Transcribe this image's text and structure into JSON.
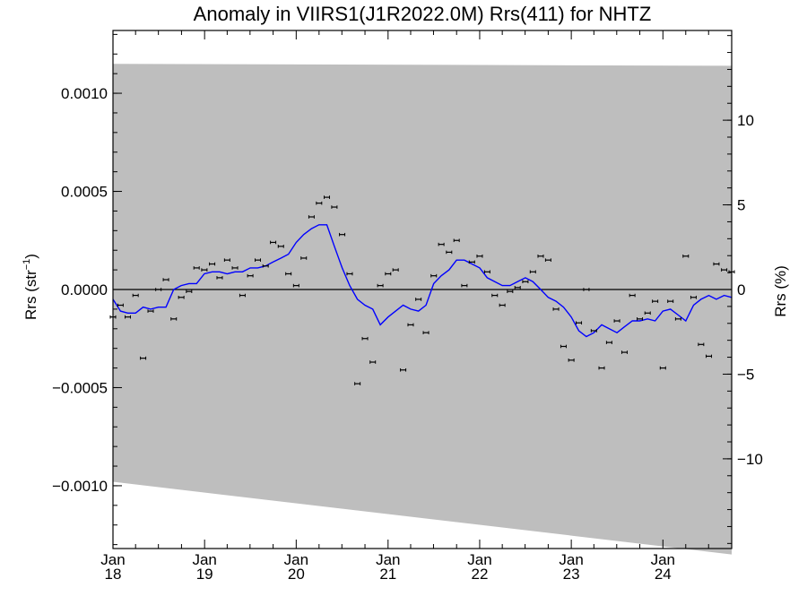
{
  "chart_data": {
    "type": "scatter",
    "title": "Anomaly in VIIRS1(J1R2022.0M) Rrs(411) for NHTZ",
    "ylabel": "Rrs (str",
    "ylabel_sup": "−1",
    "ylabel_close": ")",
    "y2label": "Rrs (%)",
    "xlim": [
      "2018-01-01",
      "2024-10-01"
    ],
    "ylim": [
      -0.00132,
      0.00132
    ],
    "y2lim": [
      -15.3,
      15.3
    ],
    "x_ticks": [
      {
        "date": "2018-01-01",
        "month": "Jan",
        "year": "18"
      },
      {
        "date": "2019-01-01",
        "month": "Jan",
        "year": "19"
      },
      {
        "date": "2020-01-01",
        "month": "Jan",
        "year": "20"
      },
      {
        "date": "2021-01-01",
        "month": "Jan",
        "year": "21"
      },
      {
        "date": "2022-01-01",
        "month": "Jan",
        "year": "22"
      },
      {
        "date": "2023-01-01",
        "month": "Jan",
        "year": "23"
      },
      {
        "date": "2024-01-01",
        "month": "Jan",
        "year": "24"
      }
    ],
    "y_ticks": [
      {
        "value": 0.001,
        "label": "0.0010"
      },
      {
        "value": 0.0005,
        "label": "0.0005"
      },
      {
        "value": 0.0,
        "label": "0.0000"
      },
      {
        "value": -0.0005,
        "label": "−0.0005"
      },
      {
        "value": -0.001,
        "label": "−0.0010"
      }
    ],
    "y2_ticks": [
      {
        "value": 10,
        "label": "10"
      },
      {
        "value": 5,
        "label": "5"
      },
      {
        "value": 0,
        "label": "0"
      },
      {
        "value": -5,
        "label": "−5"
      },
      {
        "value": -10,
        "label": "−10"
      }
    ],
    "zero_line": true,
    "colors": {
      "band": "#bebebe",
      "line": "#0000ff",
      "points": "#000000",
      "axes": "#000000"
    },
    "band": {
      "x": [
        "2018-01-01",
        "2024-10-01"
      ],
      "upper": [
        0.00115,
        0.00114
      ],
      "lower": [
        -0.00098,
        -0.00135
      ]
    },
    "series": [
      {
        "kind": "points",
        "x": [
          "2018-01-01",
          "2018-01-31",
          "2018-03-01",
          "2018-04-01",
          "2018-05-01",
          "2018-05-31",
          "2018-07-01",
          "2018-07-31",
          "2018-08-31",
          "2018-09-30",
          "2018-10-31",
          "2018-11-30",
          "2018-12-31",
          "2019-01-31",
          "2019-03-02",
          "2019-04-01",
          "2019-05-02",
          "2019-06-01",
          "2019-07-02",
          "2019-08-01",
          "2019-09-01",
          "2019-10-01",
          "2019-11-01",
          "2019-12-01",
          "2020-01-01",
          "2020-01-31",
          "2020-03-02",
          "2020-04-01",
          "2020-05-02",
          "2020-06-01",
          "2020-07-02",
          "2020-08-01",
          "2020-09-01",
          "2020-10-01",
          "2020-11-01",
          "2020-12-01",
          "2021-01-01",
          "2021-01-31",
          "2021-03-02",
          "2021-04-01",
          "2021-05-02",
          "2021-06-01",
          "2021-07-02",
          "2021-08-01",
          "2021-09-01",
          "2021-10-01",
          "2021-11-01",
          "2021-12-01",
          "2022-01-01",
          "2022-01-31",
          "2022-03-02",
          "2022-04-01",
          "2022-05-02",
          "2022-06-01",
          "2022-07-02",
          "2022-08-01",
          "2022-09-01",
          "2022-10-01",
          "2022-11-01",
          "2022-12-01",
          "2023-01-01",
          "2023-01-31",
          "2023-03-02",
          "2023-04-01",
          "2023-05-02",
          "2023-06-01",
          "2023-07-02",
          "2023-08-01",
          "2023-09-01",
          "2023-10-01",
          "2023-11-01",
          "2023-12-01",
          "2024-01-01",
          "2024-01-31",
          "2024-03-02",
          "2024-04-01",
          "2024-05-02",
          "2024-06-01",
          "2024-07-02",
          "2024-08-01",
          "2024-09-01",
          "2024-10-01"
        ],
        "y": [
          -0.00014,
          -8e-05,
          -0.00014,
          -3e-05,
          -0.00035,
          -0.00011,
          0.0,
          5e-05,
          -0.00015,
          -4e-05,
          -1e-05,
          0.00011,
          0.0001,
          0.00013,
          6e-05,
          0.00015,
          0.00011,
          -3e-05,
          7e-05,
          0.00015,
          0.00012,
          0.00024,
          0.00022,
          8e-05,
          2e-05,
          0.00016,
          0.00037,
          0.00044,
          0.00047,
          0.00042,
          0.00028,
          8e-05,
          -0.00048,
          -0.00025,
          -0.00037,
          2e-05,
          8e-05,
          0.0001,
          -0.00041,
          -0.00018,
          -5e-05,
          -0.00022,
          7e-05,
          0.00023,
          0.00019,
          0.00025,
          2e-05,
          0.00014,
          0.00017,
          9e-05,
          -3e-05,
          -8e-05,
          -1e-05,
          1e-05,
          4e-05,
          9e-05,
          0.00017,
          0.00015,
          -0.0001,
          -0.00029,
          -0.00036,
          -0.00017,
          0.0,
          -0.00021,
          -0.0004,
          -0.00027,
          -0.00016,
          -0.00032,
          -3e-05,
          -0.00015,
          -0.00012,
          -6e-05,
          -0.0004,
          -6e-05,
          -0.00015,
          0.00017,
          -4e-05,
          -0.00028,
          -0.00034,
          0.00013,
          0.0001,
          9e-05
        ]
      },
      {
        "kind": "line",
        "x": [
          "2018-01-01",
          "2018-01-31",
          "2018-03-01",
          "2018-04-01",
          "2018-05-01",
          "2018-05-31",
          "2018-07-01",
          "2018-07-31",
          "2018-08-31",
          "2018-09-30",
          "2018-10-31",
          "2018-11-30",
          "2018-12-31",
          "2019-01-31",
          "2019-03-02",
          "2019-04-01",
          "2019-05-02",
          "2019-06-01",
          "2019-07-02",
          "2019-08-01",
          "2019-09-01",
          "2019-10-01",
          "2019-11-01",
          "2019-12-01",
          "2020-01-01",
          "2020-01-31",
          "2020-03-02",
          "2020-04-01",
          "2020-05-02",
          "2020-06-01",
          "2020-07-02",
          "2020-08-01",
          "2020-09-01",
          "2020-10-01",
          "2020-11-01",
          "2020-12-01",
          "2021-01-01",
          "2021-01-31",
          "2021-03-02",
          "2021-04-01",
          "2021-05-02",
          "2021-06-01",
          "2021-07-02",
          "2021-08-01",
          "2021-09-01",
          "2021-10-01",
          "2021-11-01",
          "2021-12-01",
          "2022-01-01",
          "2022-01-31",
          "2022-03-02",
          "2022-04-01",
          "2022-05-02",
          "2022-06-01",
          "2022-07-02",
          "2022-08-01",
          "2022-09-01",
          "2022-10-01",
          "2022-11-01",
          "2022-12-01",
          "2023-01-01",
          "2023-01-31",
          "2023-03-02",
          "2023-04-01",
          "2023-05-02",
          "2023-06-01",
          "2023-07-02",
          "2023-08-01",
          "2023-09-01",
          "2023-10-01",
          "2023-11-01",
          "2023-12-01",
          "2024-01-01",
          "2024-01-31",
          "2024-03-02",
          "2024-04-01",
          "2024-05-02",
          "2024-06-01",
          "2024-07-02",
          "2024-08-01",
          "2024-09-01",
          "2024-10-01"
        ],
        "y": [
          -5e-05,
          -0.00011,
          -0.00012,
          -0.00012,
          -9e-05,
          -0.0001,
          -9e-05,
          -9e-05,
          0.0,
          2e-05,
          3e-05,
          3e-05,
          8e-05,
          9e-05,
          9e-05,
          8e-05,
          9e-05,
          9e-05,
          0.00011,
          0.00011,
          0.00012,
          0.00014,
          0.00016,
          0.00018,
          0.00024,
          0.00028,
          0.00031,
          0.00033,
          0.00033,
          0.00022,
          0.00011,
          2e-05,
          -5e-05,
          -8e-05,
          -0.0001,
          -0.00018,
          -0.00014,
          -0.00011,
          -8e-05,
          -0.0001,
          -0.00011,
          -8e-05,
          3e-05,
          7e-05,
          0.0001,
          0.00015,
          0.00015,
          0.00013,
          0.00011,
          6e-05,
          4e-05,
          2e-05,
          2e-05,
          4e-05,
          6e-05,
          4e-05,
          0.0,
          -4e-05,
          -6e-05,
          -9e-05,
          -0.00014,
          -0.00021,
          -0.00024,
          -0.00022,
          -0.00018,
          -0.0002,
          -0.00022,
          -0.00019,
          -0.00016,
          -0.00016,
          -0.00015,
          -0.00016,
          -0.00011,
          -0.0001,
          -0.00013,
          -0.00016,
          -8e-05,
          -5e-05,
          -3e-05,
          -5e-05,
          -3e-05,
          -4e-05
        ]
      }
    ]
  }
}
